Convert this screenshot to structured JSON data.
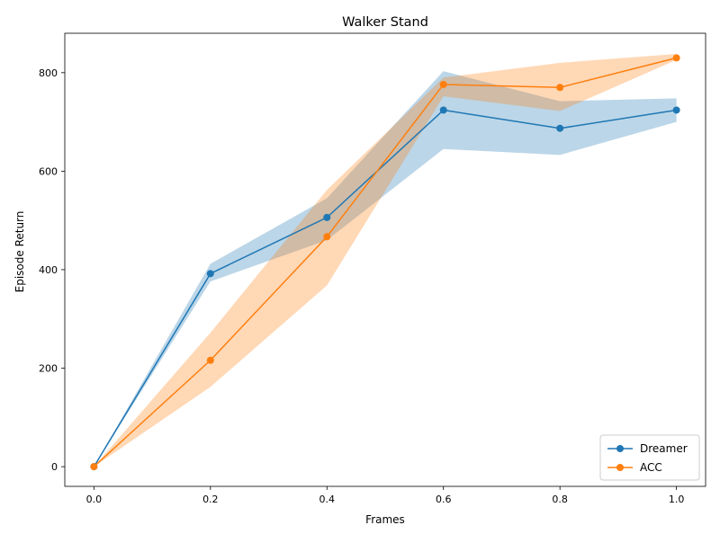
{
  "chart_data": {
    "type": "line",
    "title": "Walker Stand",
    "xlabel": "Frames",
    "ylabel": "Episode Return",
    "x": [
      0.0,
      0.2,
      0.4,
      0.6,
      0.8,
      1.0
    ],
    "xlim": [
      -0.05,
      1.05
    ],
    "ylim": [
      -40,
      880
    ],
    "xticks": [
      0.0,
      0.2,
      0.4,
      0.6,
      0.8,
      1.0
    ],
    "xtick_labels": [
      "0.0",
      "0.2",
      "0.4",
      "0.6",
      "0.8",
      "1.0"
    ],
    "yticks": [
      0,
      200,
      400,
      600,
      800
    ],
    "ytick_labels": [
      "0",
      "200",
      "400",
      "600",
      "800"
    ],
    "grid": false,
    "legend_position": "lower-right",
    "series": [
      {
        "name": "Dreamer",
        "color": "#1f77b4",
        "band_color": "#1f77b4",
        "values": [
          0,
          392,
          506,
          724,
          687,
          724
        ],
        "lower": [
          0,
          376,
          460,
          645,
          633,
          700
        ],
        "upper": [
          0,
          412,
          545,
          803,
          742,
          748
        ]
      },
      {
        "name": "ACC",
        "color": "#ff7f0e",
        "band_color": "#ff7f0e",
        "values": [
          0,
          216,
          467,
          776,
          770,
          830
        ],
        "lower": [
          0,
          162,
          368,
          752,
          722,
          826
        ],
        "upper": [
          0,
          272,
          562,
          790,
          820,
          838
        ]
      }
    ]
  }
}
